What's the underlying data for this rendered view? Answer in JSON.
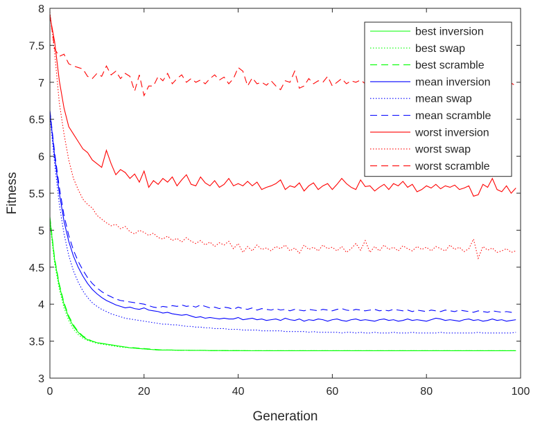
{
  "chart_data": {
    "type": "line",
    "title": "",
    "xlabel": "Generation",
    "ylabel": "Fitness",
    "xlim": [
      0,
      100
    ],
    "ylim": [
      3,
      8
    ],
    "xticks": [
      "0",
      "20",
      "40",
      "60",
      "80",
      "100"
    ],
    "yticks": [
      "3",
      "3.5",
      "4",
      "4.5",
      "5",
      "5.5",
      "6",
      "6.5",
      "7",
      "7.5",
      "8"
    ],
    "grid": false,
    "legend_position": "top-right",
    "x": [
      0,
      1,
      2,
      3,
      4,
      5,
      6,
      7,
      8,
      9,
      10,
      11,
      12,
      13,
      14,
      15,
      16,
      17,
      18,
      19,
      20,
      21,
      22,
      23,
      24,
      25,
      26,
      27,
      28,
      29,
      30,
      31,
      32,
      33,
      34,
      35,
      36,
      37,
      38,
      39,
      40,
      41,
      42,
      43,
      44,
      45,
      46,
      47,
      48,
      49,
      50,
      51,
      52,
      53,
      54,
      55,
      56,
      57,
      58,
      59,
      60,
      61,
      62,
      63,
      64,
      65,
      66,
      67,
      68,
      69,
      70,
      71,
      72,
      73,
      74,
      75,
      76,
      77,
      78,
      79,
      80,
      81,
      82,
      83,
      84,
      85,
      86,
      87,
      88,
      89,
      90,
      91,
      92,
      93,
      94,
      95,
      96,
      97,
      98,
      99
    ],
    "series": [
      {
        "name": "best inversion",
        "color": "#00ff00",
        "dash": "solid",
        "values": [
          5.15,
          4.6,
          4.25,
          4.0,
          3.82,
          3.7,
          3.62,
          3.56,
          3.52,
          3.5,
          3.48,
          3.47,
          3.46,
          3.45,
          3.44,
          3.43,
          3.42,
          3.41,
          3.405,
          3.4,
          3.395,
          3.39,
          3.385,
          3.38,
          3.38,
          3.38,
          3.38,
          3.377,
          3.377,
          3.377,
          3.375,
          3.375,
          3.375,
          3.375,
          3.373,
          3.373,
          3.373,
          3.373,
          3.372,
          3.372,
          3.372,
          3.372,
          3.371,
          3.371,
          3.371,
          3.371,
          3.37,
          3.37,
          3.37,
          3.37,
          3.37,
          3.37,
          3.37,
          3.37,
          3.37,
          3.37,
          3.37,
          3.37,
          3.37,
          3.37,
          3.37,
          3.37,
          3.37,
          3.37,
          3.37,
          3.37,
          3.37,
          3.37,
          3.37,
          3.37,
          3.37,
          3.37,
          3.37,
          3.37,
          3.37,
          3.37,
          3.37,
          3.37,
          3.37,
          3.37,
          3.37,
          3.37,
          3.37,
          3.37,
          3.37,
          3.37,
          3.37,
          3.37,
          3.37,
          3.37,
          3.37,
          3.37,
          3.37,
          3.37,
          3.37,
          3.37,
          3.37,
          3.37,
          3.37,
          3.37
        ]
      },
      {
        "name": "best swap",
        "color": "#00ff00",
        "dash": "dotted",
        "values": [
          5.1,
          4.55,
          4.2,
          3.95,
          3.78,
          3.66,
          3.59,
          3.54,
          3.51,
          3.49,
          3.47,
          3.46,
          3.45,
          3.44,
          3.43,
          3.42,
          3.415,
          3.41,
          3.405,
          3.4,
          3.395,
          3.39,
          3.385,
          3.38,
          3.38,
          3.38,
          3.378,
          3.377,
          3.377,
          3.377,
          3.375,
          3.375,
          3.375,
          3.374,
          3.373,
          3.373,
          3.373,
          3.372,
          3.372,
          3.372,
          3.372,
          3.371,
          3.371,
          3.371,
          3.371,
          3.37,
          3.37,
          3.37,
          3.37,
          3.37,
          3.37,
          3.37,
          3.37,
          3.37,
          3.37,
          3.37,
          3.37,
          3.37,
          3.37,
          3.37,
          3.37,
          3.37,
          3.37,
          3.37,
          3.37,
          3.37,
          3.37,
          3.37,
          3.37,
          3.37,
          3.37,
          3.37,
          3.37,
          3.37,
          3.37,
          3.37,
          3.37,
          3.37,
          3.37,
          3.37,
          3.37,
          3.37,
          3.37,
          3.37,
          3.37,
          3.37,
          3.37,
          3.37,
          3.37,
          3.37,
          3.37,
          3.37,
          3.37,
          3.37,
          3.37,
          3.37,
          3.37,
          3.37,
          3.37,
          3.37
        ]
      },
      {
        "name": "best scramble",
        "color": "#00ff00",
        "dash": "dashed",
        "values": [
          5.18,
          4.62,
          4.27,
          4.02,
          3.84,
          3.72,
          3.63,
          3.57,
          3.53,
          3.5,
          3.48,
          3.47,
          3.46,
          3.45,
          3.44,
          3.43,
          3.42,
          3.415,
          3.41,
          3.405,
          3.4,
          3.395,
          3.39,
          3.385,
          3.38,
          3.38,
          3.38,
          3.378,
          3.377,
          3.377,
          3.375,
          3.375,
          3.375,
          3.375,
          3.373,
          3.373,
          3.373,
          3.373,
          3.372,
          3.372,
          3.372,
          3.372,
          3.371,
          3.371,
          3.371,
          3.371,
          3.37,
          3.37,
          3.37,
          3.37,
          3.37,
          3.37,
          3.37,
          3.37,
          3.37,
          3.37,
          3.37,
          3.37,
          3.37,
          3.37,
          3.37,
          3.37,
          3.37,
          3.37,
          3.37,
          3.37,
          3.37,
          3.37,
          3.37,
          3.37,
          3.37,
          3.37,
          3.37,
          3.37,
          3.37,
          3.37,
          3.37,
          3.37,
          3.37,
          3.37,
          3.37,
          3.37,
          3.37,
          3.37,
          3.37,
          3.37,
          3.37,
          3.37,
          3.37,
          3.37,
          3.37,
          3.37,
          3.37,
          3.37,
          3.37,
          3.37,
          3.37,
          3.37,
          3.37,
          3.37
        ]
      },
      {
        "name": "mean inversion",
        "color": "#0000ff",
        "dash": "solid",
        "values": [
          6.6,
          6.0,
          5.5,
          5.12,
          4.85,
          4.65,
          4.5,
          4.38,
          4.28,
          4.2,
          4.14,
          4.09,
          4.05,
          4.02,
          3.99,
          3.97,
          3.95,
          3.96,
          3.94,
          3.93,
          3.95,
          3.92,
          3.91,
          3.9,
          3.88,
          3.89,
          3.87,
          3.86,
          3.85,
          3.86,
          3.84,
          3.82,
          3.83,
          3.81,
          3.82,
          3.81,
          3.8,
          3.81,
          3.8,
          3.8,
          3.82,
          3.79,
          3.8,
          3.81,
          3.79,
          3.8,
          3.78,
          3.79,
          3.8,
          3.78,
          3.81,
          3.79,
          3.78,
          3.8,
          3.77,
          3.79,
          3.78,
          3.8,
          3.79,
          3.77,
          3.79,
          3.8,
          3.78,
          3.77,
          3.79,
          3.8,
          3.78,
          3.79,
          3.78,
          3.77,
          3.79,
          3.8,
          3.78,
          3.79,
          3.77,
          3.78,
          3.8,
          3.78,
          3.79,
          3.78,
          3.77,
          3.79,
          3.81,
          3.8,
          3.78,
          3.79,
          3.78,
          3.77,
          3.79,
          3.8,
          3.78,
          3.79,
          3.77,
          3.78,
          3.8,
          3.78,
          3.79,
          3.77,
          3.78,
          3.79
        ]
      },
      {
        "name": "mean swap",
        "color": "#0000ff",
        "dash": "dotted",
        "values": [
          6.55,
          5.9,
          5.35,
          4.95,
          4.66,
          4.45,
          4.3,
          4.18,
          4.09,
          4.02,
          3.97,
          3.93,
          3.9,
          3.87,
          3.85,
          3.83,
          3.81,
          3.8,
          3.79,
          3.78,
          3.77,
          3.76,
          3.75,
          3.74,
          3.73,
          3.73,
          3.72,
          3.72,
          3.71,
          3.7,
          3.7,
          3.69,
          3.69,
          3.68,
          3.68,
          3.67,
          3.67,
          3.67,
          3.66,
          3.66,
          3.66,
          3.65,
          3.65,
          3.65,
          3.65,
          3.64,
          3.64,
          3.64,
          3.64,
          3.64,
          3.63,
          3.63,
          3.63,
          3.63,
          3.63,
          3.62,
          3.63,
          3.62,
          3.62,
          3.62,
          3.62,
          3.62,
          3.61,
          3.62,
          3.62,
          3.61,
          3.62,
          3.61,
          3.61,
          3.62,
          3.61,
          3.61,
          3.61,
          3.62,
          3.61,
          3.61,
          3.61,
          3.62,
          3.61,
          3.61,
          3.61,
          3.61,
          3.61,
          3.62,
          3.61,
          3.61,
          3.61,
          3.61,
          3.61,
          3.61,
          3.61,
          3.62,
          3.61,
          3.61,
          3.61,
          3.61,
          3.61,
          3.61,
          3.61,
          3.62
        ]
      },
      {
        "name": "mean scramble",
        "color": "#0000ff",
        "dash": "dashed",
        "values": [
          6.62,
          6.05,
          5.58,
          5.2,
          4.93,
          4.73,
          4.58,
          4.46,
          4.36,
          4.28,
          4.22,
          4.17,
          4.13,
          4.1,
          4.07,
          4.05,
          4.04,
          4.03,
          4.02,
          4.01,
          4.0,
          3.98,
          3.96,
          3.95,
          3.97,
          3.96,
          3.98,
          3.97,
          3.99,
          3.97,
          3.98,
          3.96,
          3.99,
          3.97,
          3.95,
          3.96,
          3.94,
          3.96,
          3.95,
          3.93,
          3.96,
          3.94,
          3.93,
          3.95,
          3.92,
          3.94,
          3.93,
          3.92,
          3.94,
          3.92,
          3.93,
          3.91,
          3.93,
          3.92,
          3.91,
          3.93,
          3.92,
          3.91,
          3.93,
          3.92,
          3.91,
          3.93,
          3.94,
          3.92,
          3.91,
          3.93,
          3.92,
          3.91,
          3.92,
          3.93,
          3.91,
          3.92,
          3.91,
          3.93,
          3.92,
          3.91,
          3.92,
          3.9,
          3.92,
          3.91,
          3.9,
          3.92,
          3.91,
          3.9,
          3.92,
          3.91,
          3.9,
          3.92,
          3.91,
          3.9,
          3.89,
          3.91,
          3.9,
          3.89,
          3.91,
          3.9,
          3.89,
          3.9,
          3.89,
          3.88
        ]
      },
      {
        "name": "worst inversion",
        "color": "#ff0000",
        "dash": "solid",
        "values": [
          7.9,
          7.55,
          7.02,
          6.65,
          6.4,
          6.3,
          6.2,
          6.1,
          6.05,
          5.95,
          5.9,
          5.85,
          6.08,
          5.9,
          5.75,
          5.82,
          5.78,
          5.7,
          5.76,
          5.65,
          5.8,
          5.58,
          5.67,
          5.62,
          5.7,
          5.65,
          5.72,
          5.6,
          5.68,
          5.75,
          5.62,
          5.6,
          5.72,
          5.64,
          5.6,
          5.67,
          5.58,
          5.62,
          5.7,
          5.6,
          5.63,
          5.6,
          5.66,
          5.6,
          5.65,
          5.55,
          5.58,
          5.6,
          5.63,
          5.68,
          5.55,
          5.6,
          5.58,
          5.64,
          5.53,
          5.6,
          5.64,
          5.55,
          5.6,
          5.63,
          5.55,
          5.62,
          5.7,
          5.63,
          5.58,
          5.55,
          5.68,
          5.59,
          5.6,
          5.53,
          5.58,
          5.62,
          5.55,
          5.63,
          5.6,
          5.66,
          5.58,
          5.62,
          5.52,
          5.55,
          5.6,
          5.57,
          5.62,
          5.56,
          5.6,
          5.58,
          5.61,
          5.55,
          5.57,
          5.6,
          5.46,
          5.48,
          5.62,
          5.58,
          5.7,
          5.55,
          5.52,
          5.6,
          5.5,
          5.57
        ]
      },
      {
        "name": "worst swap",
        "color": "#ff0000",
        "dash": "dotted",
        "values": [
          7.95,
          7.4,
          6.72,
          6.3,
          5.95,
          5.7,
          5.55,
          5.42,
          5.35,
          5.3,
          5.2,
          5.15,
          5.1,
          5.06,
          5.08,
          5.02,
          5.05,
          4.98,
          4.95,
          5.0,
          4.97,
          4.93,
          4.96,
          4.9,
          4.88,
          4.92,
          4.86,
          4.89,
          4.84,
          4.9,
          4.85,
          4.82,
          4.86,
          4.8,
          4.84,
          4.78,
          4.83,
          4.8,
          4.85,
          4.75,
          4.82,
          4.7,
          4.78,
          4.72,
          4.8,
          4.74,
          4.76,
          4.72,
          4.78,
          4.75,
          4.8,
          4.72,
          4.76,
          4.69,
          4.8,
          4.74,
          4.77,
          4.72,
          4.8,
          4.75,
          4.77,
          4.72,
          4.78,
          4.7,
          4.75,
          4.82,
          4.73,
          4.86,
          4.7,
          4.78,
          4.72,
          4.8,
          4.74,
          4.77,
          4.72,
          4.79,
          4.75,
          4.72,
          4.78,
          4.74,
          4.77,
          4.72,
          4.78,
          4.75,
          4.72,
          4.8,
          4.74,
          4.77,
          4.71,
          4.75,
          4.88,
          4.62,
          4.78,
          4.73,
          4.76,
          4.7,
          4.72,
          4.75,
          4.7,
          4.72
        ]
      },
      {
        "name": "worst scramble",
        "color": "#ff0000",
        "dash": "dashed",
        "values": [
          7.92,
          7.45,
          7.35,
          7.38,
          7.25,
          7.22,
          7.2,
          7.18,
          7.08,
          7.05,
          7.12,
          7.08,
          7.22,
          7.1,
          7.15,
          7.05,
          7.12,
          7.08,
          6.88,
          7.1,
          6.82,
          6.95,
          6.95,
          7.08,
          7.02,
          7.12,
          6.98,
          7.05,
          7.1,
          7.0,
          7.05,
          7.0,
          7.03,
          6.98,
          7.05,
          7.1,
          7.03,
          7.07,
          6.98,
          7.05,
          7.2,
          7.15,
          6.95,
          7.06,
          6.98,
          7.0,
          6.96,
          7.02,
          6.95,
          6.9,
          7.02,
          7.0,
          7.15,
          6.92,
          6.95,
          7.05,
          6.98,
          7.02,
          7.0,
          7.08,
          6.95,
          7.0,
          7.05,
          6.98,
          7.02,
          7.0,
          7.03,
          6.98,
          7.01,
          7.0,
          6.97,
          7.02,
          6.99,
          7.0,
          6.98,
          7.01,
          6.98,
          7.02,
          7.0,
          6.99,
          7.0,
          6.98,
          7.01,
          6.99,
          7.0,
          6.98,
          7.01,
          6.99,
          7.0,
          6.98,
          7.01,
          6.99,
          7.0,
          6.98,
          7.01,
          6.99,
          7.0,
          6.98,
          6.99,
          6.95
        ]
      }
    ]
  }
}
